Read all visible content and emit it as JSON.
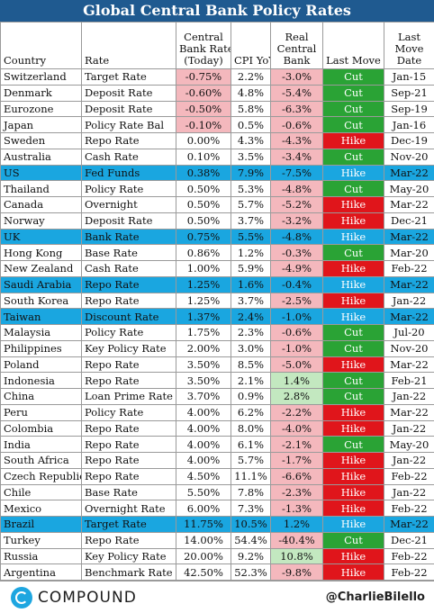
{
  "title": "Global Central Bank Policy Rates",
  "headers": {
    "country": "Country",
    "rate": "Rate",
    "cb_rate": [
      "Central",
      "Bank Rate",
      "(Today)"
    ],
    "cpi": "CPI YoY",
    "real": [
      "Real",
      "Central",
      "Bank"
    ],
    "last_move": "Last Move",
    "last_move_date": [
      "Last",
      "Move",
      "Date"
    ]
  },
  "colors": {
    "header_blue": "#1f5a90",
    "highlight_row": "#1aa6e0",
    "negative_cell": "#f4b8bd",
    "positive_cell": "#c3e8c0",
    "cut": "#2aa335",
    "hike": "#e0151b"
  },
  "chart_data": {
    "type": "table",
    "title": "Global Central Bank Policy Rates",
    "columns": [
      "Country",
      "Rate",
      "Central Bank Rate (Today)",
      "CPI YoY",
      "Real Central Bank",
      "Last Move",
      "Last Move Date"
    ],
    "rows": [
      {
        "country": "Switzerland",
        "rate": "Target Rate",
        "cb_rate": "-0.75%",
        "cpi": "2.2%",
        "real": "-3.0%",
        "move": "Cut",
        "date": "Jan-15",
        "highlight": false
      },
      {
        "country": "Denmark",
        "rate": "Deposit Rate",
        "cb_rate": "-0.60%",
        "cpi": "4.8%",
        "real": "-5.4%",
        "move": "Cut",
        "date": "Sep-21",
        "highlight": false
      },
      {
        "country": "Eurozone",
        "rate": "Deposit Rate",
        "cb_rate": "-0.50%",
        "cpi": "5.8%",
        "real": "-6.3%",
        "move": "Cut",
        "date": "Sep-19",
        "highlight": false
      },
      {
        "country": "Japan",
        "rate": "Policy Rate Bal",
        "cb_rate": "-0.10%",
        "cpi": "0.5%",
        "real": "-0.6%",
        "move": "Cut",
        "date": "Jan-16",
        "highlight": false
      },
      {
        "country": "Sweden",
        "rate": "Repo Rate",
        "cb_rate": "0.00%",
        "cpi": "4.3%",
        "real": "-4.3%",
        "move": "Hike",
        "date": "Dec-19",
        "highlight": false
      },
      {
        "country": "Australia",
        "rate": "Cash Rate",
        "cb_rate": "0.10%",
        "cpi": "3.5%",
        "real": "-3.4%",
        "move": "Cut",
        "date": "Nov-20",
        "highlight": false
      },
      {
        "country": "US",
        "rate": "Fed Funds",
        "cb_rate": "0.38%",
        "cpi": "7.9%",
        "real": "-7.5%",
        "move": "Hike",
        "date": "Mar-22",
        "highlight": true
      },
      {
        "country": "Thailand",
        "rate": "Policy Rate",
        "cb_rate": "0.50%",
        "cpi": "5.3%",
        "real": "-4.8%",
        "move": "Cut",
        "date": "May-20",
        "highlight": false
      },
      {
        "country": "Canada",
        "rate": "Overnight",
        "cb_rate": "0.50%",
        "cpi": "5.7%",
        "real": "-5.2%",
        "move": "Hike",
        "date": "Mar-22",
        "highlight": false
      },
      {
        "country": "Norway",
        "rate": "Deposit Rate",
        "cb_rate": "0.50%",
        "cpi": "3.7%",
        "real": "-3.2%",
        "move": "Hike",
        "date": "Dec-21",
        "highlight": false
      },
      {
        "country": "UK",
        "rate": "Bank Rate",
        "cb_rate": "0.75%",
        "cpi": "5.5%",
        "real": "-4.8%",
        "move": "Hike",
        "date": "Mar-22",
        "highlight": true
      },
      {
        "country": "Hong Kong",
        "rate": "Base Rate",
        "cb_rate": "0.86%",
        "cpi": "1.2%",
        "real": "-0.3%",
        "move": "Cut",
        "date": "Mar-20",
        "highlight": false
      },
      {
        "country": "New Zealand",
        "rate": "Cash Rate",
        "cb_rate": "1.00%",
        "cpi": "5.9%",
        "real": "-4.9%",
        "move": "Hike",
        "date": "Feb-22",
        "highlight": false
      },
      {
        "country": "Saudi Arabia",
        "rate": "Repo Rate",
        "cb_rate": "1.25%",
        "cpi": "1.6%",
        "real": "-0.4%",
        "move": "Hike",
        "date": "Mar-22",
        "highlight": true
      },
      {
        "country": "South Korea",
        "rate": "Repo Rate",
        "cb_rate": "1.25%",
        "cpi": "3.7%",
        "real": "-2.5%",
        "move": "Hike",
        "date": "Jan-22",
        "highlight": false
      },
      {
        "country": "Taiwan",
        "rate": "Discount Rate",
        "cb_rate": "1.37%",
        "cpi": "2.4%",
        "real": "-1.0%",
        "move": "Hike",
        "date": "Mar-22",
        "highlight": true
      },
      {
        "country": "Malaysia",
        "rate": "Policy Rate",
        "cb_rate": "1.75%",
        "cpi": "2.3%",
        "real": "-0.6%",
        "move": "Cut",
        "date": "Jul-20",
        "highlight": false
      },
      {
        "country": "Philippines",
        "rate": "Key Policy Rate",
        "cb_rate": "2.00%",
        "cpi": "3.0%",
        "real": "-1.0%",
        "move": "Cut",
        "date": "Nov-20",
        "highlight": false
      },
      {
        "country": "Poland",
        "rate": "Repo Rate",
        "cb_rate": "3.50%",
        "cpi": "8.5%",
        "real": "-5.0%",
        "move": "Hike",
        "date": "Mar-22",
        "highlight": false
      },
      {
        "country": "Indonesia",
        "rate": "Repo Rate",
        "cb_rate": "3.50%",
        "cpi": "2.1%",
        "real": "1.4%",
        "move": "Cut",
        "date": "Feb-21",
        "highlight": false
      },
      {
        "country": "China",
        "rate": "Loan Prime Rate",
        "cb_rate": "3.70%",
        "cpi": "0.9%",
        "real": "2.8%",
        "move": "Cut",
        "date": "Jan-22",
        "highlight": false
      },
      {
        "country": "Peru",
        "rate": "Policy Rate",
        "cb_rate": "4.00%",
        "cpi": "6.2%",
        "real": "-2.2%",
        "move": "Hike",
        "date": "Mar-22",
        "highlight": false
      },
      {
        "country": "Colombia",
        "rate": "Repo Rate",
        "cb_rate": "4.00%",
        "cpi": "8.0%",
        "real": "-4.0%",
        "move": "Hike",
        "date": "Jan-22",
        "highlight": false
      },
      {
        "country": "India",
        "rate": "Repo Rate",
        "cb_rate": "4.00%",
        "cpi": "6.1%",
        "real": "-2.1%",
        "move": "Cut",
        "date": "May-20",
        "highlight": false
      },
      {
        "country": "South Africa",
        "rate": "Repo Rate",
        "cb_rate": "4.00%",
        "cpi": "5.7%",
        "real": "-1.7%",
        "move": "Hike",
        "date": "Jan-22",
        "highlight": false
      },
      {
        "country": "Czech Republic",
        "rate": "Repo Rate",
        "cb_rate": "4.50%",
        "cpi": "11.1%",
        "real": "-6.6%",
        "move": "Hike",
        "date": "Feb-22",
        "highlight": false
      },
      {
        "country": "Chile",
        "rate": "Base Rate",
        "cb_rate": "5.50%",
        "cpi": "7.8%",
        "real": "-2.3%",
        "move": "Hike",
        "date": "Jan-22",
        "highlight": false
      },
      {
        "country": "Mexico",
        "rate": "Overnight Rate",
        "cb_rate": "6.00%",
        "cpi": "7.3%",
        "real": "-1.3%",
        "move": "Hike",
        "date": "Feb-22",
        "highlight": false
      },
      {
        "country": "Brazil",
        "rate": "Target Rate",
        "cb_rate": "11.75%",
        "cpi": "10.5%",
        "real": "1.2%",
        "move": "Hike",
        "date": "Mar-22",
        "highlight": true
      },
      {
        "country": "Turkey",
        "rate": "Repo Rate",
        "cb_rate": "14.00%",
        "cpi": "54.4%",
        "real": "-40.4%",
        "move": "Cut",
        "date": "Dec-21",
        "highlight": false
      },
      {
        "country": "Russia",
        "rate": "Key Policy Rate",
        "cb_rate": "20.00%",
        "cpi": "9.2%",
        "real": "10.8%",
        "move": "Hike",
        "date": "Feb-22",
        "highlight": false
      },
      {
        "country": "Argentina",
        "rate": "Benchmark Rate",
        "cb_rate": "42.50%",
        "cpi": "52.3%",
        "real": "-9.8%",
        "move": "Hike",
        "date": "Feb-22",
        "highlight": false
      }
    ]
  },
  "footer": {
    "logo_text": "COMPOUND",
    "handle": "@CharlieBilello"
  }
}
